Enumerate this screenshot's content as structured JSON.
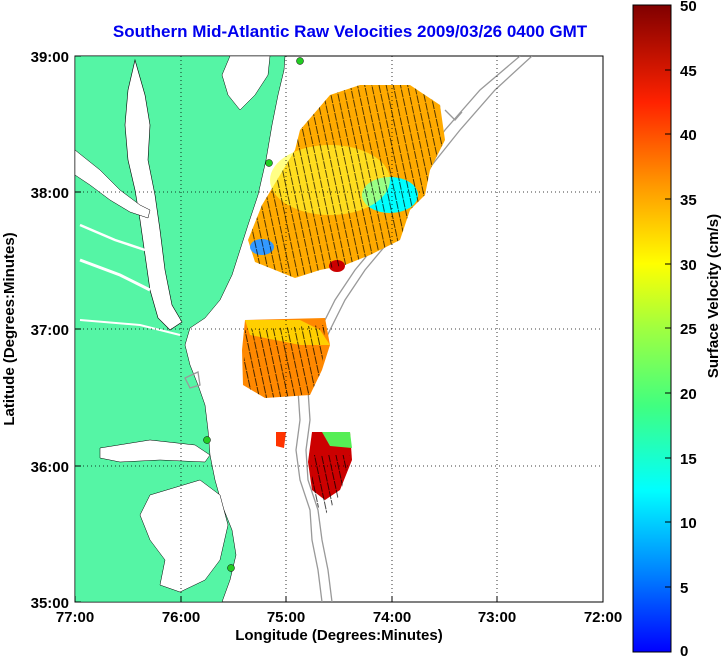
{
  "title": "Southern Mid-Atlantic Raw Velocities 2009/03/26 0400 GMT",
  "axes": {
    "xlabel": "Longitude (Degrees:Minutes)",
    "ylabel": "Latitude (Degrees:Minutes)",
    "x_ticks": [
      "77:00",
      "76:00",
      "75:00",
      "74:00",
      "73:00",
      "72:00"
    ],
    "y_ticks": [
      "39:00",
      "38:00",
      "37:00",
      "36:00",
      "35:00"
    ]
  },
  "colorbar": {
    "label": "Surface Velocity (cm/s)",
    "ticks": [
      "50",
      "45",
      "40",
      "35",
      "30",
      "25",
      "20",
      "15",
      "10",
      "5",
      "0"
    ],
    "range": [
      0,
      50
    ]
  },
  "colors": {
    "land": "#55f5a5",
    "water": "#ffffff",
    "bathymetry": "#999999",
    "title": "#0000ee",
    "stations": "#22cc22"
  }
}
